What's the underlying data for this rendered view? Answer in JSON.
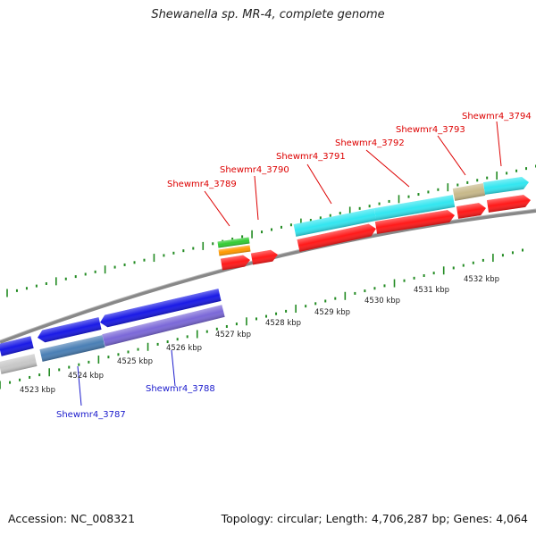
{
  "title": "Shewanella sp. MR-4, complete genome",
  "footer": {
    "accession": "Accession: NC_008321",
    "summary": "Topology: circular; Length: 4,706,287 bp; Genes: 4,064"
  },
  "colors": {
    "forward_cds": "#ff1a1a",
    "reverse_cds": "#1a1ae6",
    "reverse_cds_alt": "#7b68d8",
    "reverse_cds_steel": "#4a7fb5",
    "forward_cyan": "#33e6f0",
    "khaki": "#c8b98a",
    "grey": "#c8c8c8",
    "green": "#33cc33",
    "orange": "#ff9900",
    "tick": "#228b22",
    "forward_label": "#dd0000",
    "reverse_label": "#1a1acc"
  },
  "scale_labels": [
    "4523 kbp",
    "4524 kbp",
    "4525 kbp",
    "4526 kbp",
    "4527 kbp",
    "4528 kbp",
    "4529 kbp",
    "4530 kbp",
    "4531 kbp",
    "4532 kbp"
  ],
  "gene_labels_forward": [
    "Shewmr4_3789",
    "Shewmr4_3790",
    "Shewmr4_3791",
    "Shewmr4_3792",
    "Shewmr4_3793",
    "Shewmr4_3794"
  ],
  "gene_labels_reverse": [
    "Shewmr4_3787",
    "Shewmr4_3788"
  ]
}
